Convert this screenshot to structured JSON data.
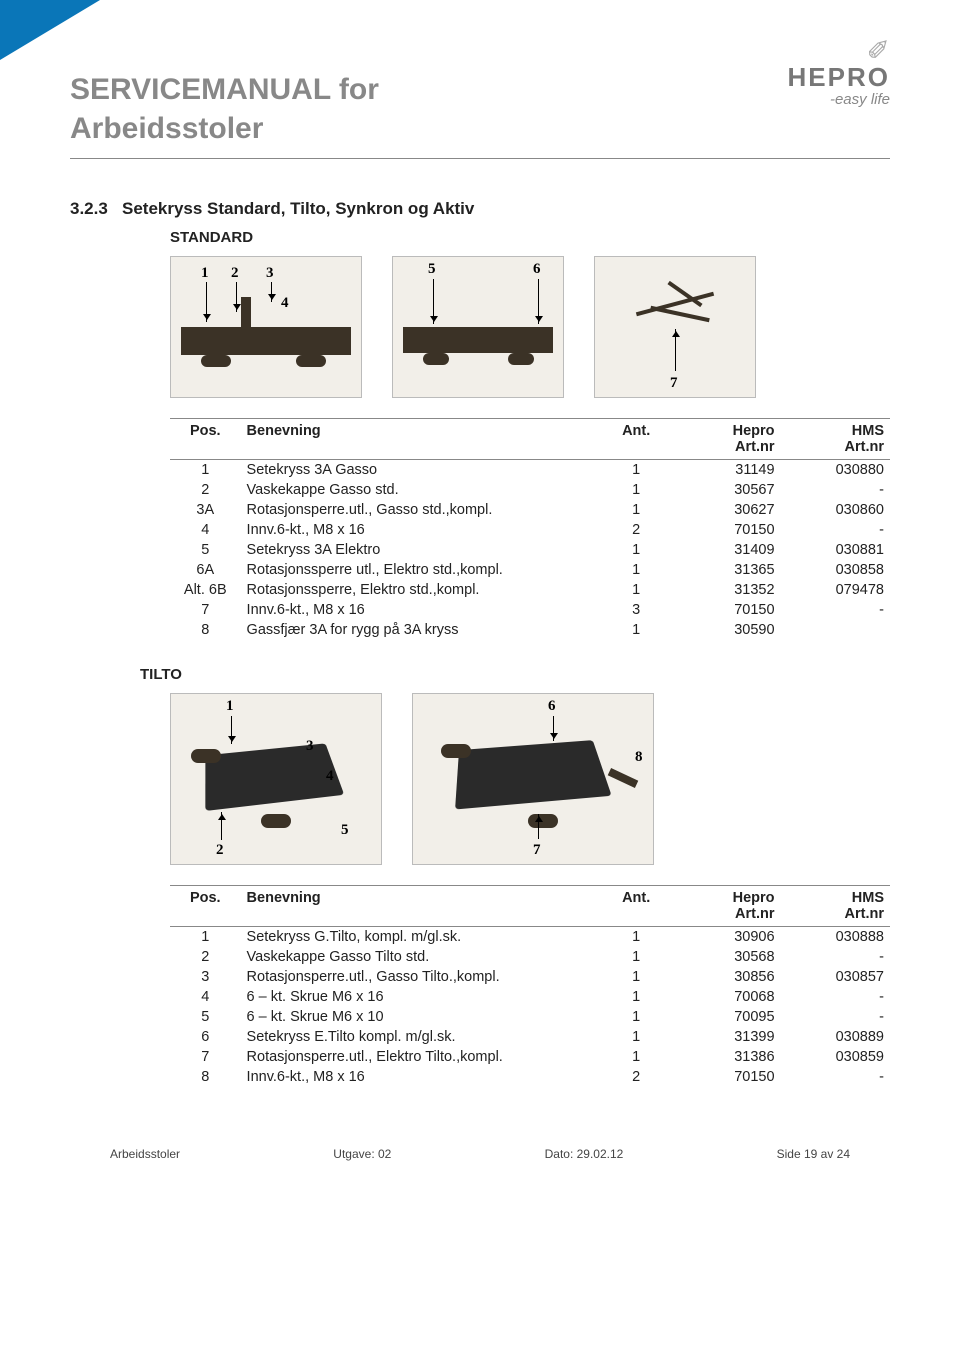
{
  "header": {
    "title_line1": "SERVICEMANUAL for",
    "title_line2": "Arbeidsstoler",
    "logo_brand": "HEPRO",
    "logo_tagline": "-easy life"
  },
  "section": {
    "number": "3.2.3",
    "title": "Setekryss Standard, Tilto, Synkron og Aktiv"
  },
  "standard": {
    "label": "STANDARD",
    "diagram1_labels": [
      "1",
      "2",
      "3",
      "4"
    ],
    "diagram2_labels": [
      "5",
      "6"
    ],
    "diagram3_labels": [
      "7"
    ],
    "columns": {
      "pos": "Pos.",
      "name": "Benevning",
      "ant": "Ant.",
      "hepro": "Hepro",
      "hepro_sub": "Art.nr",
      "hms": "HMS",
      "hms_sub": "Art.nr"
    },
    "rows": [
      {
        "pos": "1",
        "name": "Setekryss 3A Gasso",
        "ant": "1",
        "hepro": "31149",
        "hms": "030880"
      },
      {
        "pos": "2",
        "name": "Vaskekappe Gasso std.",
        "ant": "1",
        "hepro": "30567",
        "hms": "-"
      },
      {
        "pos": "3A",
        "name": "Rotasjonsperre.utl., Gasso std.,kompl.",
        "ant": "1",
        "hepro": "30627",
        "hms": "030860"
      },
      {
        "pos": "4",
        "name": "Innv.6-kt., M8 x 16",
        "ant": "2",
        "hepro": "70150",
        "hms": "-"
      },
      {
        "pos": "5",
        "name": "Setekryss 3A Elektro",
        "ant": "1",
        "hepro": "31409",
        "hms": "030881"
      },
      {
        "pos": "6A",
        "name": "Rotasjonssperre utl., Elektro std.,kompl.",
        "ant": "1",
        "hepro": "31365",
        "hms": "030858"
      },
      {
        "pos": "Alt. 6B",
        "name": "Rotasjonssperre, Elektro std.,kompl.",
        "ant": "1",
        "hepro": "31352",
        "hms": "079478"
      },
      {
        "pos": "7",
        "name": "Innv.6-kt., M8 x 16",
        "ant": "3",
        "hepro": "70150",
        "hms": "-"
      },
      {
        "pos": "8",
        "name": "Gassfjær 3A for rygg på 3A kryss",
        "ant": "1",
        "hepro": "30590",
        "hms": ""
      }
    ]
  },
  "tilto": {
    "label": "TILTO",
    "diagram1_labels": [
      "1",
      "2",
      "3",
      "4",
      "5"
    ],
    "diagram2_labels": [
      "6",
      "7",
      "8"
    ],
    "columns": {
      "pos": "Pos.",
      "name": "Benevning",
      "ant": "Ant.",
      "hepro": "Hepro",
      "hepro_sub": "Art.nr",
      "hms": "HMS",
      "hms_sub": "Art.nr"
    },
    "rows": [
      {
        "pos": "1",
        "name": "Setekryss G.Tilto, kompl. m/gl.sk.",
        "ant": "1",
        "hepro": "30906",
        "hms": "030888"
      },
      {
        "pos": "2",
        "name": "Vaskekappe Gasso Tilto std.",
        "ant": "1",
        "hepro": "30568",
        "hms": "-"
      },
      {
        "pos": "3",
        "name": "Rotasjonsperre.utl., Gasso Tilto.,kompl.",
        "ant": "1",
        "hepro": "30856",
        "hms": "030857"
      },
      {
        "pos": "4",
        "name": "6 – kt. Skrue M6 x 16",
        "ant": "1",
        "hepro": "70068",
        "hms": "-"
      },
      {
        "pos": "5",
        "name": "6 – kt. Skrue M6 x 10",
        "ant": "1",
        "hepro": "70095",
        "hms": "-"
      },
      {
        "pos": "6",
        "name": "Setekryss E.Tilto kompl. m/gl.sk.",
        "ant": "1",
        "hepro": "31399",
        "hms": "030889"
      },
      {
        "pos": "7",
        "name": "Rotasjonsperre.utl., Elektro Tilto.,kompl.",
        "ant": "1",
        "hepro": "31386",
        "hms": "030859"
      },
      {
        "pos": "8",
        "name": "Innv.6-kt., M8 x 16",
        "ant": "2",
        "hepro": "70150",
        "hms": "-"
      }
    ]
  },
  "footer": {
    "left": "Arbeidsstoler",
    "center": "Utgave: 02",
    "date": "Dato: 29.02.12",
    "page": "Side 19 av 24"
  },
  "colors": {
    "accent": "#0a76b8",
    "title_gray": "#888888",
    "text": "#222222",
    "rule": "#888888",
    "diagram_bg": "#f2efe9",
    "mech_dark": "#3b3226"
  }
}
